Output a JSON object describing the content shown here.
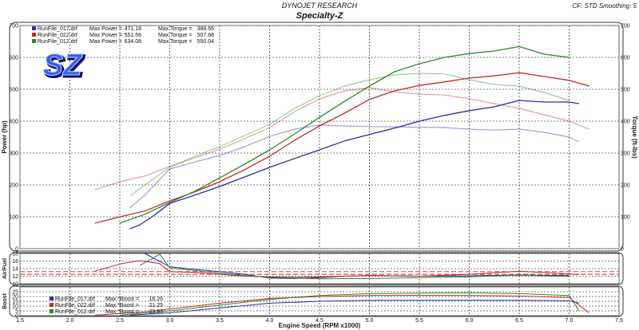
{
  "header": {
    "company": "DYNOJET RESEARCH",
    "title": "Specialty-Z",
    "settings": "CF: STD  Smoothing: 5"
  },
  "logo": {
    "text": "SZ"
  },
  "colors": {
    "run1": "#2b2bb0",
    "run2": "#c42a2a",
    "run3": "#2a8a2a",
    "grid": "#000000",
    "afr_ref": "#d22222"
  },
  "chart_data": [
    {
      "type": "line",
      "id": "power_torque",
      "xlabel": "",
      "ylabel": "Power (hp)",
      "ylabel_right": "Torque (ft-lbs)",
      "xlim": [
        1.5,
        7.5
      ],
      "ylim": [
        0,
        700
      ],
      "ylim_right": [
        0,
        700
      ],
      "x_ticks": [],
      "y_ticks": [
        0,
        100,
        200,
        300,
        400,
        500,
        600,
        700
      ],
      "y_ticks_right": [
        0,
        100,
        200,
        300,
        400,
        500,
        600,
        700
      ],
      "grid": true,
      "legend": [
        {
          "file": "RunFile_017.drf",
          "max_power_label": "Max Power =",
          "max_power": "471.18",
          "max_torque_label": "Max Torque =",
          "max_torque": "388.66"
        },
        {
          "file": "RunFile_022.drf",
          "max_power_label": "Max Power =",
          "max_power": "551.56",
          "max_torque_label": "Max Torque =",
          "max_torque": "507.68"
        },
        {
          "file": "RunFile_012.drf",
          "max_power_label": "Max Power =",
          "max_power": "634.08",
          "max_torque_label": "Max Torque =",
          "max_torque": "550.04"
        }
      ],
      "series": [
        {
          "metric": "power",
          "run": 1,
          "x": [
            2.6,
            2.7,
            2.8,
            2.9,
            3.0,
            3.25,
            3.5,
            3.75,
            4.0,
            4.25,
            4.5,
            4.75,
            5.0,
            5.25,
            5.5,
            5.75,
            6.0,
            6.25,
            6.5,
            6.75,
            7.0,
            7.1
          ],
          "values": [
            62,
            75,
            95,
            118,
            142,
            168,
            195,
            225,
            255,
            283,
            310,
            338,
            358,
            378,
            400,
            418,
            433,
            445,
            465,
            460,
            460,
            455
          ]
        },
        {
          "metric": "power",
          "run": 2,
          "x": [
            2.25,
            2.5,
            2.75,
            3.0,
            3.25,
            3.5,
            3.75,
            4.0,
            4.25,
            4.5,
            4.75,
            5.0,
            5.25,
            5.5,
            5.75,
            6.0,
            6.25,
            6.5,
            6.75,
            7.0,
            7.2
          ],
          "values": [
            80,
            100,
            118,
            150,
            178,
            210,
            248,
            290,
            340,
            385,
            425,
            468,
            495,
            512,
            523,
            535,
            542,
            552,
            540,
            528,
            510
          ]
        },
        {
          "metric": "power",
          "run": 3,
          "x": [
            2.5,
            2.75,
            3.0,
            3.25,
            3.5,
            3.75,
            4.0,
            4.25,
            4.5,
            4.75,
            5.0,
            5.25,
            5.5,
            5.75,
            6.0,
            6.25,
            6.5,
            6.75,
            7.0
          ],
          "values": [
            80,
            108,
            145,
            180,
            222,
            265,
            310,
            360,
            412,
            462,
            510,
            555,
            580,
            600,
            612,
            620,
            634,
            610,
            600
          ]
        },
        {
          "metric": "torque",
          "run": 1,
          "x": [
            2.6,
            2.75,
            3.0,
            3.25,
            3.5,
            3.75,
            4.0,
            4.25,
            4.5,
            4.75,
            5.0,
            5.25,
            5.5,
            5.75,
            6.0,
            6.25,
            6.5,
            6.75,
            7.0,
            7.1
          ],
          "values": [
            128,
            168,
            250,
            272,
            292,
            320,
            352,
            375,
            388,
            385,
            383,
            382,
            381,
            380,
            375,
            372,
            375,
            365,
            350,
            335
          ]
        },
        {
          "metric": "torque",
          "run": 2,
          "x": [
            2.25,
            2.5,
            2.75,
            3.0,
            3.25,
            3.5,
            3.75,
            4.0,
            4.25,
            4.5,
            4.75,
            5.0,
            5.25,
            5.5,
            5.75,
            6.0,
            6.25,
            6.5,
            6.75,
            7.0,
            7.2
          ],
          "values": [
            185,
            210,
            228,
            258,
            285,
            312,
            345,
            380,
            430,
            470,
            495,
            505,
            492,
            485,
            482,
            470,
            455,
            440,
            420,
            400,
            375
          ]
        },
        {
          "metric": "torque",
          "run": 3,
          "x": [
            2.6,
            2.75,
            3.0,
            3.25,
            3.5,
            3.75,
            4.0,
            4.25,
            4.5,
            4.75,
            5.0,
            5.25,
            5.5,
            5.75,
            6.0,
            6.25,
            6.5,
            6.75,
            7.0
          ],
          "values": [
            165,
            200,
            255,
            290,
            320,
            355,
            390,
            440,
            480,
            510,
            530,
            545,
            550,
            548,
            530,
            515,
            510,
            490,
            465
          ]
        }
      ]
    },
    {
      "type": "line",
      "id": "air_fuel",
      "ylabel": "Air/Fuel",
      "xlim": [
        1.5,
        7.5
      ],
      "ylim": [
        10,
        18
      ],
      "y_ticks": [
        10,
        12,
        14,
        16,
        18
      ],
      "reference_lines": [
        12.5,
        13.2
      ],
      "grid": true,
      "series": [
        {
          "run": 1,
          "x": [
            2.75,
            3.0,
            3.25,
            3.5,
            3.75,
            4.0,
            4.25,
            4.5,
            4.75,
            5.0,
            5.5,
            6.0,
            6.5,
            7.0
          ],
          "values": [
            18,
            14.5,
            13.8,
            13.2,
            12.5,
            11.5,
            11.4,
            11.6,
            12.0,
            12.2,
            12.0,
            12.1,
            12.3,
            12.2
          ]
        },
        {
          "run": 2,
          "x": [
            2.25,
            2.5,
            2.7,
            2.9,
            3.0,
            3.25,
            3.5,
            3.75,
            4.0,
            4.25,
            4.5,
            5.0,
            5.5,
            6.0,
            6.5,
            7.0,
            7.1
          ],
          "values": [
            13.3,
            15.2,
            16.1,
            15.3,
            13.2,
            13.0,
            12.5,
            12.0,
            11.8,
            11.7,
            11.8,
            12.2,
            12.0,
            12.5,
            13.3,
            12.6,
            12.4
          ]
        },
        {
          "run": 3,
          "x": [
            2.7,
            2.9,
            3.0,
            3.25,
            3.5,
            3.75,
            4.0,
            4.5,
            5.0,
            5.5,
            6.0,
            6.5,
            7.0
          ],
          "values": [
            14.8,
            17.8,
            14.2,
            13.5,
            12.8,
            12.2,
            11.7,
            11.3,
            11.4,
            11.6,
            11.8,
            12.3,
            11.9
          ]
        }
      ]
    },
    {
      "type": "line",
      "id": "boost",
      "ylabel": "Boost",
      "xlabel": "Engine Speed (RPM x1000)",
      "xlim": [
        1.5,
        7.5
      ],
      "ylim": [
        0,
        30
      ],
      "x_ticks": [
        1.5,
        2.0,
        2.5,
        3.0,
        3.5,
        4.0,
        4.5,
        5.0,
        5.5,
        6.0,
        6.5,
        7.0,
        7.5
      ],
      "y_ticks": [
        0,
        5,
        10,
        15,
        20,
        25
      ],
      "grid": true,
      "legend": [
        {
          "file": "RunFile_017.drf",
          "label": "Max *Boost =",
          "value": "16.26"
        },
        {
          "file": "RunFile_022.drf",
          "label": "Max *Boost =",
          "value": "21.25"
        },
        {
          "file": "RunFile_012.drf",
          "label": "Max *Boost =",
          "value": "23.93"
        }
      ],
      "series": [
        {
          "run": 1,
          "x": [
            2.6,
            3.0,
            3.5,
            4.0,
            4.5,
            5.0,
            5.5,
            6.0,
            6.5,
            7.0,
            7.1
          ],
          "values": [
            0.5,
            3,
            8,
            13,
            15,
            16,
            16,
            16.2,
            16,
            15.5,
            13
          ]
        },
        {
          "run": 2,
          "x": [
            2.25,
            2.75,
            3.0,
            3.5,
            4.0,
            4.5,
            5.0,
            5.5,
            6.0,
            6.5,
            7.0,
            7.2
          ],
          "values": [
            0.5,
            4,
            7,
            13,
            18,
            20,
            21,
            21.2,
            21,
            20.5,
            19,
            3
          ]
        },
        {
          "run": 3,
          "x": [
            2.5,
            3.0,
            3.5,
            4.0,
            4.5,
            5.0,
            5.5,
            6.0,
            6.5,
            7.0,
            7.1
          ],
          "values": [
            0.5,
            5,
            11,
            17,
            21,
            23,
            23.5,
            23.9,
            23,
            21,
            5
          ]
        }
      ]
    }
  ]
}
